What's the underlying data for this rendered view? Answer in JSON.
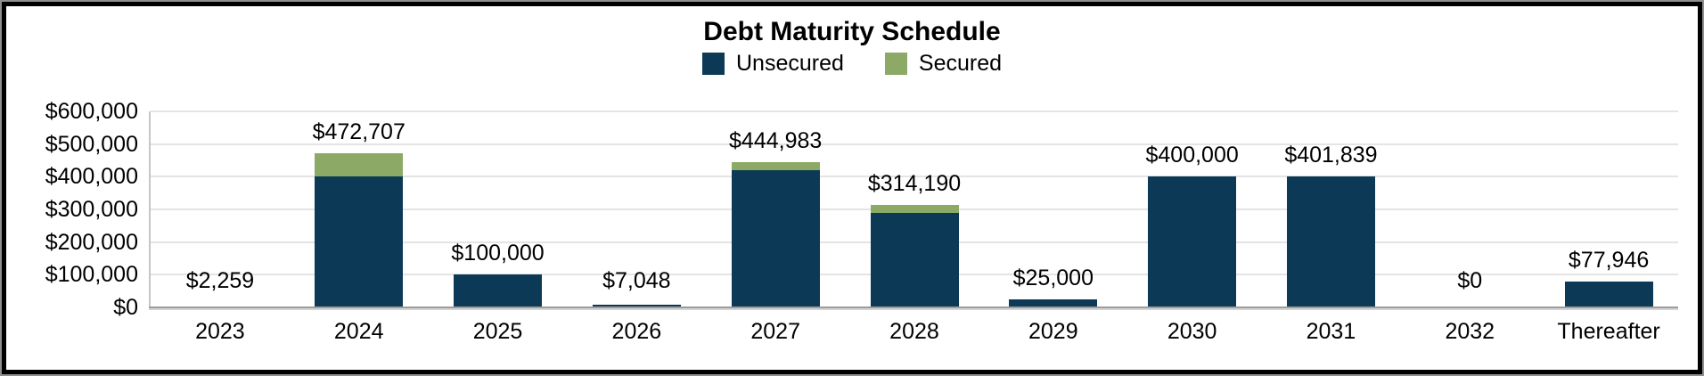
{
  "title": "Debt Maturity Schedule",
  "colors": {
    "unsecured": "#0c3a56",
    "secured": "#8ca966",
    "gridline": "#e4e4e4",
    "axis_line": "#9c9c9c",
    "frame_border": "#000000"
  },
  "legend": [
    {
      "label": "Unsecured",
      "color": "#0c3a56"
    },
    {
      "label": "Secured",
      "color": "#8ca966"
    }
  ],
  "chart_data": {
    "type": "bar",
    "stacked": true,
    "title": "Debt Maturity Schedule",
    "grid": true,
    "legend_position": "top",
    "categories": [
      "2023",
      "2024",
      "2025",
      "2026",
      "2027",
      "2028",
      "2029",
      "2030",
      "2031",
      "2032",
      "Thereafter"
    ],
    "series": [
      {
        "name": "Unsecured",
        "color": "#0c3a56",
        "values": [
          2259,
          400000,
          100000,
          7048,
          420000,
          290000,
          25000,
          400000,
          401839,
          0,
          77946
        ]
      },
      {
        "name": "Secured",
        "color": "#8ca966",
        "values": [
          0,
          72707,
          0,
          0,
          24983,
          24190,
          0,
          0,
          0,
          0,
          0
        ]
      }
    ],
    "totals": [
      2259,
      472707,
      100000,
      7048,
      444983,
      314190,
      25000,
      400000,
      401839,
      0,
      77946
    ],
    "bar_labels": [
      "$2,259",
      "$472,707",
      "$100,000",
      "$7,048",
      "$444,983",
      "$314,190",
      "$25,000",
      "$400,000",
      "$401,839",
      "$0",
      "$77,946"
    ],
    "xlabel": "",
    "ylabel": "",
    "y_axis": {
      "min": 0,
      "max": 600000,
      "tick_values": [
        600000,
        500000,
        400000,
        300000,
        200000,
        100000,
        0
      ],
      "tick_labels": [
        "$600,000",
        "$500,000",
        "$400,000",
        "$300,000",
        "$200,000",
        "$100,000",
        "$0"
      ]
    }
  }
}
